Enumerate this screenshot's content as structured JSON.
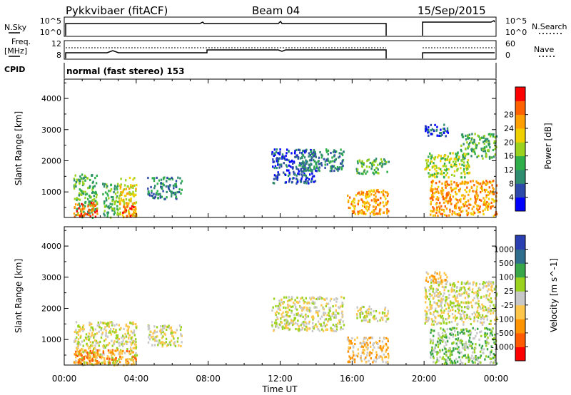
{
  "header": {
    "station": "Pykkvibaer (fitACF)",
    "beam": "Beam 04",
    "date": "15/Sep/2015"
  },
  "status_panels": {
    "nsky_label": "N.Sky",
    "nsky_ticks": [
      "10^5",
      "10^0"
    ],
    "nsearch_label": "N.Search",
    "nsearch_ticks": [
      "10^5",
      "10^0"
    ],
    "freq_label": "Freq.",
    "freq_unit": "[MHz]",
    "freq_ticks": [
      "12",
      "8"
    ],
    "nave_label": "Nave",
    "nave_ticks": [
      "60",
      "0"
    ],
    "cpid_label": "CPID",
    "cpid_text": "normal (fast stereo) 153"
  },
  "colors": {
    "power": [
      "#0000ff",
      "#2d4aa8",
      "#2f8c6e",
      "#2fae4a",
      "#9ad21e",
      "#f0d000",
      "#ffa000",
      "#ff6000",
      "#ff0000"
    ],
    "velocity": [
      "#ff0000",
      "#ff5a00",
      "#ff9400",
      "#ffc64c",
      "#c8c8c8",
      "#9ad21e",
      "#3aa64a",
      "#2f6e8c",
      "#2a3fb0"
    ]
  },
  "chart_data": [
    {
      "type": "heatmap",
      "name": "power",
      "ylabel": "Slant Range [km]",
      "yticks": [
        1000,
        2000,
        3000,
        4000
      ],
      "ylim": [
        180,
        4620
      ],
      "xlim_hours": [
        0,
        24
      ],
      "colorbar": {
        "label": "Power [dB]",
        "ticks": [
          4,
          8,
          12,
          16,
          20,
          24,
          28
        ],
        "range": [
          0,
          32
        ]
      },
      "data_gap_hours": [
        18.0,
        20.0
      ],
      "patches": [
        {
          "t0": 0.5,
          "t1": 1.8,
          "r0": 200,
          "r1": 1600,
          "level": 3
        },
        {
          "t0": 0.5,
          "t1": 1.8,
          "r0": 220,
          "r1": 700,
          "level": 7
        },
        {
          "t0": 2.1,
          "t1": 3.0,
          "r0": 200,
          "r1": 1300,
          "level": 3
        },
        {
          "t0": 3.0,
          "t1": 4.0,
          "r0": 220,
          "r1": 1500,
          "level": 5
        },
        {
          "t0": 3.2,
          "t1": 4.0,
          "r0": 220,
          "r1": 600,
          "level": 7
        },
        {
          "t0": 4.6,
          "t1": 6.5,
          "r0": 800,
          "r1": 1500,
          "level": 2
        },
        {
          "t0": 11.5,
          "t1": 14.0,
          "r0": 1300,
          "r1": 2400,
          "level": 1
        },
        {
          "t0": 13.0,
          "t1": 15.5,
          "r0": 1700,
          "r1": 2400,
          "level": 2
        },
        {
          "t0": 15.7,
          "t1": 18.0,
          "r0": 300,
          "r1": 1100,
          "level": 6
        },
        {
          "t0": 16.2,
          "t1": 18.0,
          "r0": 1600,
          "r1": 2100,
          "level": 3
        },
        {
          "t0": 20.0,
          "t1": 22.5,
          "r0": 1500,
          "r1": 2300,
          "level": 4
        },
        {
          "t0": 22.0,
          "t1": 24.0,
          "r0": 2100,
          "r1": 2900,
          "level": 3
        },
        {
          "t0": 20.3,
          "t1": 24.0,
          "r0": 250,
          "r1": 1400,
          "level": 6
        },
        {
          "t0": 20.0,
          "t1": 21.3,
          "r0": 2800,
          "r1": 3200,
          "level": 1
        }
      ]
    },
    {
      "type": "heatmap",
      "name": "velocity",
      "ylabel": "Slant Range [km]",
      "yticks": [
        1000,
        2000,
        3000,
        4000
      ],
      "ylim": [
        180,
        4620
      ],
      "xlim_hours": [
        0,
        24
      ],
      "xticks": [
        "00:00",
        "04:00",
        "08:00",
        "12:00",
        "16:00",
        "20:00",
        "00:00"
      ],
      "xlabel": "Time UT",
      "colorbar": {
        "label": "Velocity [m s^-1]",
        "ticks": [
          "-1000",
          "-500",
          "-100",
          "-25",
          "25",
          "100",
          "500",
          "1000"
        ]
      },
      "data_gap_hours": [
        18.0,
        20.0
      ],
      "patches": [
        {
          "t0": 0.5,
          "t1": 4.0,
          "r0": 200,
          "r1": 1600,
          "level": 4
        },
        {
          "t0": 0.5,
          "t1": 4.0,
          "r0": 220,
          "r1": 700,
          "level": 2
        },
        {
          "t0": 4.6,
          "t1": 6.5,
          "r0": 800,
          "r1": 1500,
          "level": 4
        },
        {
          "t0": 11.5,
          "t1": 15.5,
          "r0": 1300,
          "r1": 2400,
          "level": 4
        },
        {
          "t0": 15.7,
          "t1": 18.0,
          "r0": 300,
          "r1": 1100,
          "level": 3
        },
        {
          "t0": 16.2,
          "t1": 18.0,
          "r0": 1600,
          "r1": 2100,
          "level": 4
        },
        {
          "t0": 20.0,
          "t1": 24.0,
          "r0": 1500,
          "r1": 2900,
          "level": 4
        },
        {
          "t0": 20.3,
          "t1": 24.0,
          "r0": 250,
          "r1": 1400,
          "level": 5
        },
        {
          "t0": 20.0,
          "t1": 21.3,
          "r0": 2800,
          "r1": 3200,
          "level": 3
        }
      ]
    }
  ]
}
